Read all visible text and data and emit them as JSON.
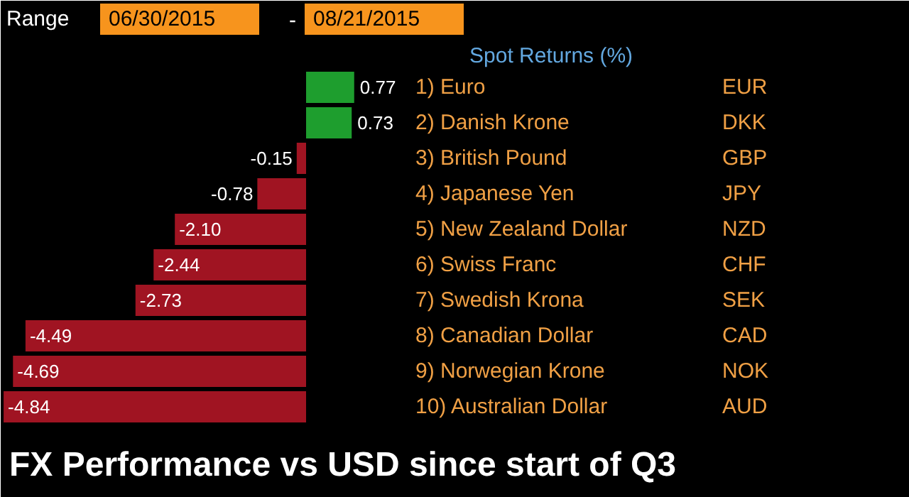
{
  "chart_data": {
    "type": "bar",
    "orientation": "horizontal",
    "title": "FX Performance vs USD since start of Q3",
    "subtitle": "Spot Returns (%)",
    "categories": [
      "1) Euro",
      "2) Danish Krone",
      "3) British Pound",
      "4) Japanese Yen",
      "5) New Zealand Dollar",
      "6) Swiss Franc",
      "7) Swedish Krona",
      "8) Canadian Dollar",
      "9) Norwegian Krone",
      "10) Australian Dollar"
    ],
    "values": [
      0.77,
      0.73,
      -0.15,
      -0.78,
      -2.1,
      -2.44,
      -2.73,
      -4.49,
      -4.69,
      -4.84
    ],
    "value_labels": [
      "0.77",
      "0.73",
      "-0.15",
      "-0.78",
      "-2.10",
      "-2.44",
      "-2.73",
      "-4.49",
      "-4.69",
      "-4.84"
    ],
    "colors": [
      "#1e9e2e",
      "#1e9e2e",
      "#a01422",
      "#a01422",
      "#a01422",
      "#a01422",
      "#a01422",
      "#a01422",
      "#a01422",
      "#a01422"
    ],
    "annotations": [
      "Range",
      "06/30/2015",
      "-",
      "08/21/2015",
      "EUR",
      "DKK",
      "GBP",
      "JPY",
      "NZD",
      "CHF",
      "SEK",
      "CAD",
      "NOK",
      "AUD"
    ]
  }
}
